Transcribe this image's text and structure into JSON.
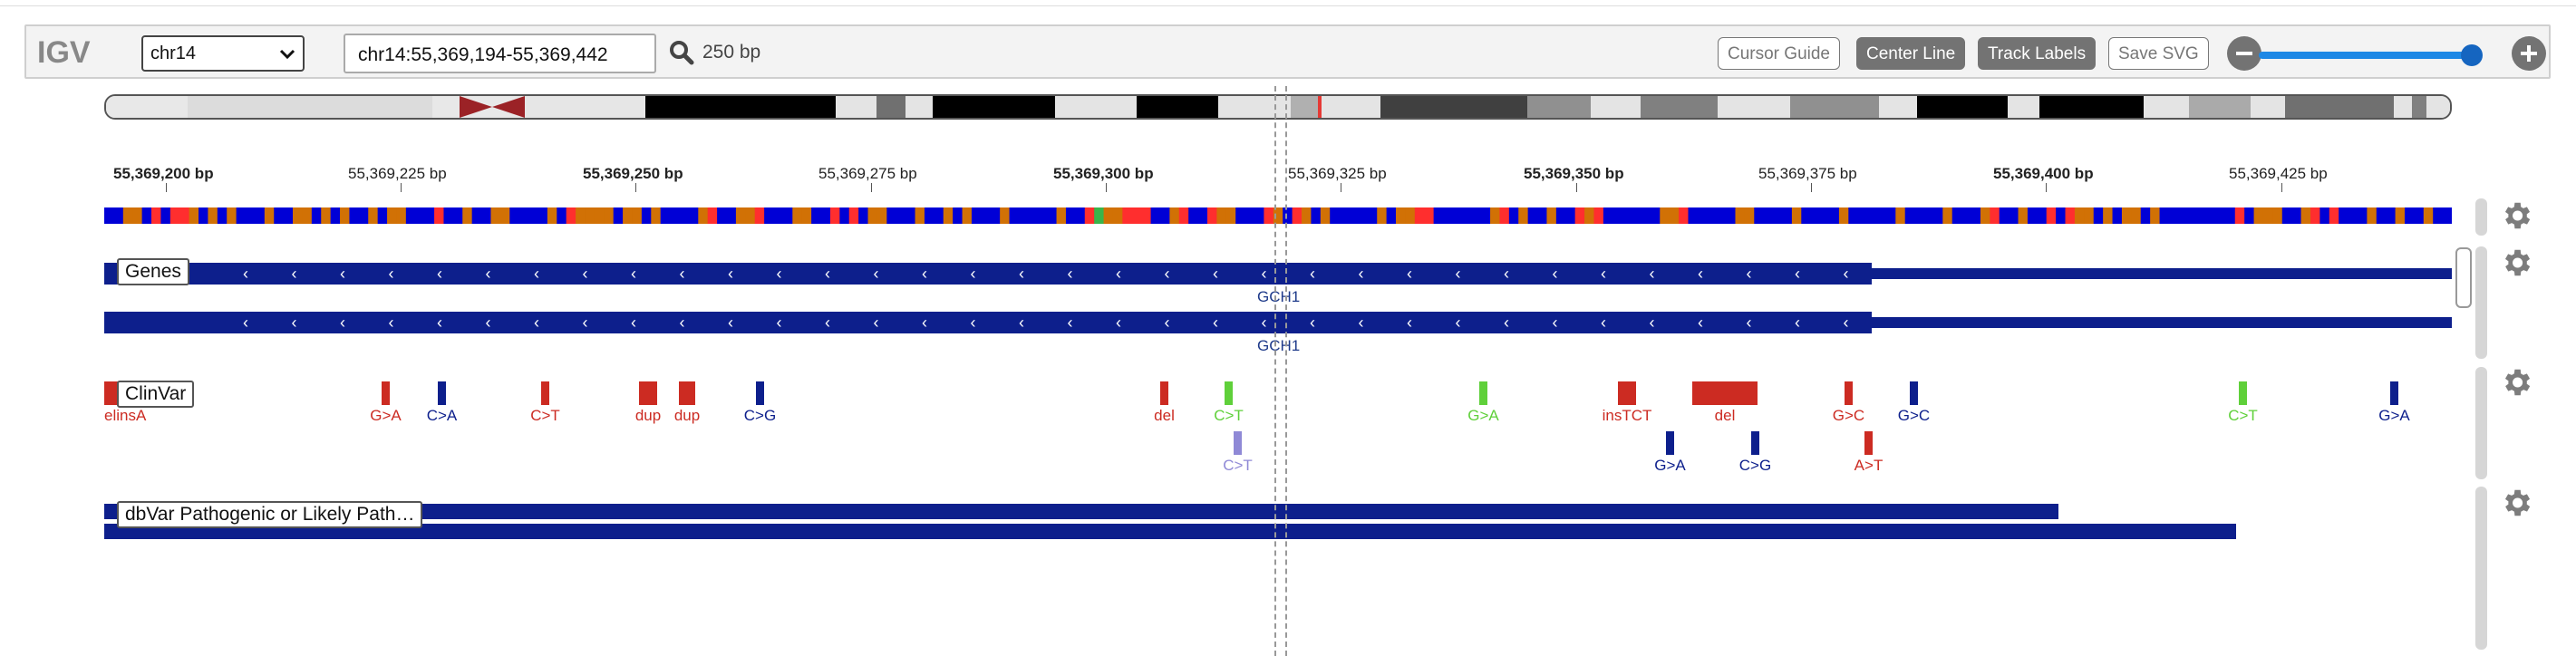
{
  "navbar": {
    "logo": "IGV",
    "chromosome": "chr14",
    "locus": "chr14:55,369,194-55,369,442",
    "bp_width": "250 bp",
    "buttons": {
      "cursor_guide": "Cursor Guide",
      "center_line": "Center Line",
      "track_labels": "Track Labels",
      "save_svg": "Save SVG"
    },
    "zoom_level": 1.0
  },
  "ruler": {
    "labels": [
      {
        "text": "55,369,200 bp",
        "bold": true
      },
      {
        "text": "55,369,225 bp",
        "bold": false
      },
      {
        "text": "55,369,250 bp",
        "bold": true
      },
      {
        "text": "55,369,275 bp",
        "bold": false
      },
      {
        "text": "55,369,300 bp",
        "bold": true
      },
      {
        "text": "55,369,325 bp",
        "bold": false
      },
      {
        "text": "55,369,350 bp",
        "bold": true
      },
      {
        "text": "55,369,375 bp",
        "bold": false
      },
      {
        "text": "55,369,400 bp",
        "bold": true
      },
      {
        "text": "55,369,425 bp",
        "bold": false
      }
    ]
  },
  "tracks": {
    "genes": {
      "label": "Genes",
      "gene_name_1": "GCH1",
      "gene_name_2": "GCH1"
    },
    "clinvar": {
      "label": "ClinVar",
      "variants": [
        {
          "label": "elinsA",
          "color": "#cc2b22"
        },
        {
          "label": "G>A",
          "color": "#cc2b22"
        },
        {
          "label": "C>A",
          "color": "#0d1f8c"
        },
        {
          "label": "C>T",
          "color": "#cc2b22"
        },
        {
          "label": "dup",
          "color": "#cc2b22"
        },
        {
          "label": "dup",
          "color": "#cc2b22"
        },
        {
          "label": "C>G",
          "color": "#0d1f8c"
        },
        {
          "label": "del",
          "color": "#cc2b22"
        },
        {
          "label": "C>T",
          "color": "#5fd03a"
        },
        {
          "label": "C>T",
          "color": "#8f89d6"
        },
        {
          "label": "G>A",
          "color": "#5fd03a"
        },
        {
          "label": "insTCT",
          "color": "#cc2b22"
        },
        {
          "label": "G>A",
          "color": "#0d1f8c"
        },
        {
          "label": "del",
          "color": "#cc2b22"
        },
        {
          "label": "C>G",
          "color": "#0d1f8c"
        },
        {
          "label": "G>C",
          "color": "#cc2b22"
        },
        {
          "label": "A>T",
          "color": "#cc2b22"
        },
        {
          "label": "G>C",
          "color": "#0d1f8c"
        },
        {
          "label": "C>T",
          "color": "#5fd03a"
        },
        {
          "label": "G>A",
          "color": "#0d1f8c"
        }
      ]
    },
    "dbvar": {
      "label": "dbVar Pathogenic or Likely Path…"
    }
  },
  "colors": {
    "gene": "#0d1f8c",
    "button_active": "#737373",
    "slider": "#1e88e5",
    "base_A": "#39b54a",
    "base_C": "#0000d6",
    "base_G": "#d17105",
    "base_T": "#ff2e2e"
  },
  "icons": [
    "search-icon",
    "minus-icon",
    "plus-icon",
    "gear-icon",
    "chevron-down-icon"
  ]
}
